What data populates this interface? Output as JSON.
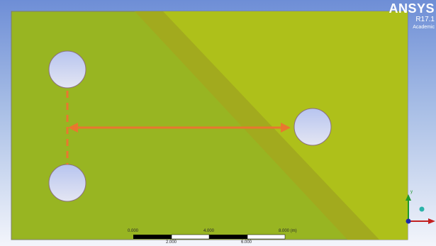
{
  "brand": {
    "name": "ANSYS",
    "version": "R17.1",
    "license": "Academic"
  },
  "scale": {
    "top_labels": [
      "0.000",
      "4.000",
      "8.000 (m)"
    ],
    "bottom_labels": [
      "2.000",
      "6.000"
    ]
  },
  "triad": {
    "axis_y": "y"
  },
  "colors": {
    "plate": "#98b522",
    "plate_light": "#a9be1a",
    "band": "#9fa81e",
    "hole_fill": "#cfd4ee",
    "arrow": "#e9772f"
  }
}
